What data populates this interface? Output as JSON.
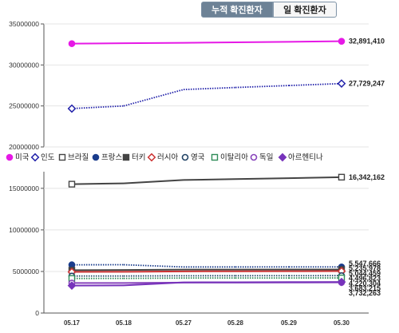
{
  "tabs": [
    {
      "label": "누적 확진환자",
      "active": true
    },
    {
      "label": "일 확진환자",
      "active": false
    }
  ],
  "chart_data": {
    "type": "line",
    "x": [
      "05.17",
      "05.18",
      "05.27",
      "05.28",
      "05.29",
      "05.30"
    ],
    "top_panel": {
      "ylim": [
        20000000,
        35000000
      ],
      "yticks": [
        "20000000",
        "25000000",
        "30000000",
        "35000000"
      ]
    },
    "bottom_panel": {
      "ylim": [
        0,
        17000000
      ],
      "yticks": [
        "0",
        "5000000",
        "10000000",
        "15000000"
      ]
    },
    "legend_position": "between panels",
    "series": [
      {
        "name": "미국",
        "panel": "top",
        "color": "#e619e6",
        "marker": "circle-filled",
        "line": "solid",
        "values": [
          32600000,
          32650000,
          32700000,
          32760000,
          32820000,
          32891410
        ],
        "end_label": "32,891,410"
      },
      {
        "name": "인도",
        "panel": "top",
        "color": "#2222aa",
        "marker": "diamond-open",
        "line": "dotted",
        "values": [
          24680000,
          25000000,
          27000000,
          27250000,
          27490000,
          27729247
        ],
        "end_label": "27,729,247"
      },
      {
        "name": "브라질",
        "panel": "bottom",
        "color": "#444444",
        "marker": "square-open",
        "line": "solid",
        "values": [
          15500000,
          15600000,
          16000000,
          16110000,
          16220000,
          16342162
        ],
        "end_label": "16,342,162"
      },
      {
        "name": "프랑스",
        "panel": "bottom",
        "color": "#1a3c8c",
        "marker": "circle-filled",
        "line": "dotted",
        "values": [
          5800000,
          5810000,
          5540000,
          5542000,
          5545000,
          5547666
        ],
        "end_label": "5,547,666"
      },
      {
        "name": "터키",
        "panel": "bottom",
        "color": "#444444",
        "marker": "square-filled",
        "line": "solid",
        "values": [
          5150000,
          5170000,
          5220000,
          5225000,
          5230000,
          5235978
        ],
        "end_label": "5,235,978"
      },
      {
        "name": "러시아",
        "panel": "bottom",
        "color": "#cc3333",
        "marker": "diamond-open",
        "line": "solid",
        "values": [
          4950000,
          4960000,
          5010000,
          5020000,
          5030000,
          5044459
        ],
        "end_label": "5,044,459"
      },
      {
        "name": "영국",
        "panel": "bottom",
        "color": "#224466",
        "marker": "circle-open",
        "line": "dotted",
        "values": [
          4450000,
          4455000,
          4480000,
          4485000,
          4490000,
          4496823
        ],
        "end_label": "4,496,823"
      },
      {
        "name": "이탈리아",
        "panel": "bottom",
        "color": "#2e8b57",
        "marker": "square-open",
        "line": "dotted",
        "values": [
          4160000,
          4165000,
          4210000,
          4213000,
          4217000,
          4220304
        ],
        "end_label": "4,220,304"
      },
      {
        "name": "독일",
        "panel": "bottom",
        "color": "#8844bb",
        "marker": "circle-open",
        "line": "solid",
        "values": [
          3610000,
          3615000,
          3660000,
          3667000,
          3675000,
          3683215
        ],
        "end_label": "3,683,215"
      },
      {
        "name": "아르헨티나",
        "panel": "bottom",
        "color": "#7733bb",
        "marker": "diamond-filled",
        "line": "solid",
        "values": [
          3300000,
          3320000,
          3690000,
          3700000,
          3720000,
          3732263
        ],
        "end_label": "3,732,263"
      }
    ]
  }
}
